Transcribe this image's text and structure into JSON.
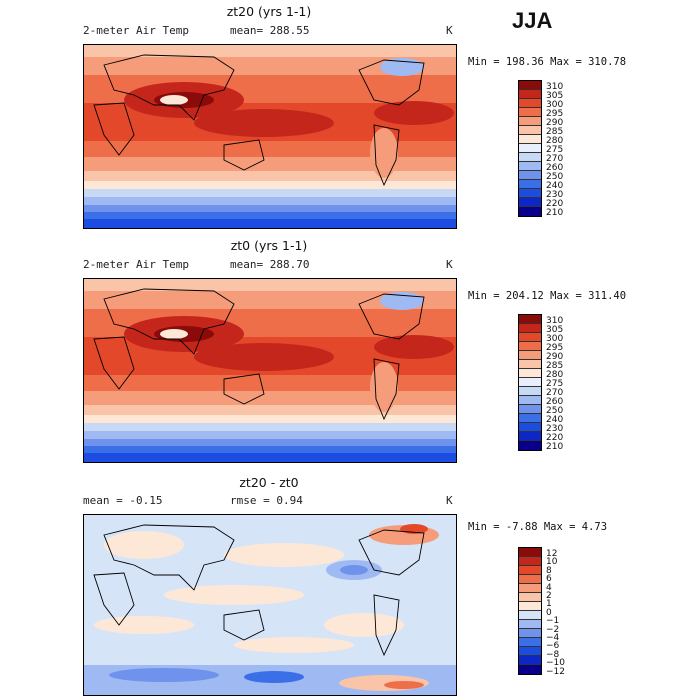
{
  "season": "JJA",
  "colors": {
    "temp": [
      "#08008c",
      "#0d27c4",
      "#1c4de0",
      "#3b6fe8",
      "#6f93ec",
      "#9fb9f2",
      "#c8d9f6",
      "#e8eefb",
      "#fde8d8",
      "#f9c4a8",
      "#f59d7b",
      "#ee6e4a",
      "#e4482a",
      "#c4261b",
      "#8b0b0b"
    ],
    "diff": [
      "#08008c",
      "#0d27c4",
      "#1c4de0",
      "#3b6fe8",
      "#6f93ec",
      "#9fb9f2",
      "#d6e4f8",
      "#fde8d8",
      "#f9c4a8",
      "#f59d7b",
      "#ee6e4a",
      "#e4482a",
      "#c4261b",
      "#8b0b0b"
    ]
  },
  "panels": [
    {
      "title": "zt20 (yrs 1-1)",
      "variable": "2-meter Air Temp",
      "mean_text": "mean= 288.55",
      "units": "K",
      "minmax": "Min = 198.36 Max = 310.78",
      "levels": [
        "310",
        "305",
        "300",
        "295",
        "290",
        "285",
        "280",
        "275",
        "270",
        "260",
        "250",
        "240",
        "230",
        "220",
        "210"
      ]
    },
    {
      "title": "zt0 (yrs 1-1)",
      "variable": "2-meter Air Temp",
      "mean_text": "mean= 288.70",
      "units": "K",
      "minmax": "Min = 204.12 Max = 311.40",
      "levels": [
        "310",
        "305",
        "300",
        "295",
        "290",
        "285",
        "280",
        "275",
        "270",
        "260",
        "250",
        "240",
        "230",
        "220",
        "210"
      ]
    },
    {
      "title": "zt20 - zt0",
      "mean_text": "mean =   -0.15",
      "rmse_text": "rmse =    0.94",
      "units": "K",
      "minmax": "Min =  -7.88 Max =   4.73",
      "levels": [
        "12",
        "10",
        "8",
        "6",
        "4",
        "2",
        "1",
        "0",
        "−1",
        "−2",
        "−4",
        "−6",
        "−8",
        "−10",
        "−12"
      ]
    }
  ]
}
